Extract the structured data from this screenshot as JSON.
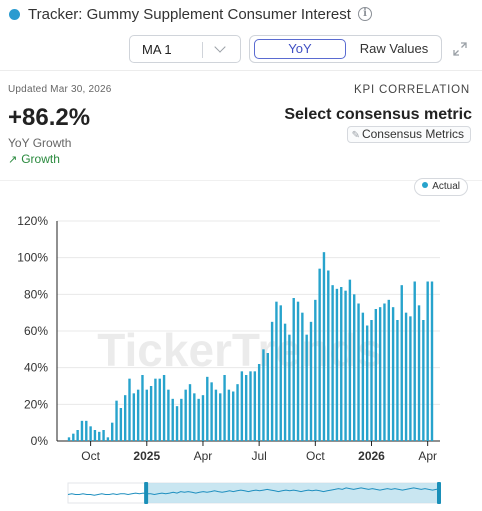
{
  "header": {
    "title": "Tracker: Gummy Supplement Consumer Interest",
    "info_icon": "info-icon"
  },
  "controls": {
    "ma_value": "MA 1",
    "toggle_yoy": "YoY",
    "toggle_raw": "Raw Values",
    "expand_icon": "expand-icon"
  },
  "summary": {
    "updated": "Updated Mar 30, 2026",
    "value": "+86.2%",
    "label": "YoY Growth",
    "trend_label": "Growth",
    "trend_color": "#2a8a3e"
  },
  "kpi": {
    "heading": "KPI CORRELATION",
    "select_label": "Select consensus metric",
    "button_label": "Consensus Metrics"
  },
  "legend": {
    "label": "Actual",
    "color": "#27a3cc"
  },
  "watermark": "TickerTrends",
  "chart_data": {
    "type": "bar",
    "title": "",
    "xlabel": "",
    "ylabel": "",
    "ylim": [
      0,
      120
    ],
    "y_ticks": [
      "0%",
      "20%",
      "40%",
      "60%",
      "80%",
      "100%",
      "120%"
    ],
    "x_ticks": [
      {
        "label": "Oct",
        "index": 5,
        "bold": false
      },
      {
        "label": "2025",
        "index": 18,
        "bold": true
      },
      {
        "label": "Apr",
        "index": 31,
        "bold": false
      },
      {
        "label": "Jul",
        "index": 44,
        "bold": false
      },
      {
        "label": "Oct",
        "index": 57,
        "bold": false
      },
      {
        "label": "2026",
        "index": 70,
        "bold": true
      },
      {
        "label": "Apr",
        "index": 83,
        "bold": false
      }
    ],
    "grid": true,
    "legend_position": "top-right",
    "series": [
      {
        "name": "Actual",
        "color": "#27a3cc",
        "values": [
          2,
          4,
          6,
          11,
          11,
          8,
          6,
          5,
          6,
          2,
          10,
          22,
          18,
          25,
          34,
          26,
          28,
          36,
          28,
          30,
          34,
          34,
          36,
          28,
          23,
          19,
          23,
          28,
          31,
          26,
          23,
          25,
          35,
          32,
          28,
          26,
          36,
          28,
          27,
          31,
          38,
          36,
          38,
          38,
          42,
          50,
          48,
          65,
          76,
          74,
          64,
          58,
          78,
          76,
          70,
          58,
          65,
          77,
          94,
          103,
          93,
          85,
          83,
          84,
          82,
          88,
          80,
          75,
          70,
          63,
          66,
          72,
          73,
          75,
          77,
          73,
          66,
          85,
          70,
          68,
          87,
          74,
          66,
          87,
          87
        ]
      }
    ]
  },
  "brush": {
    "series": [
      2,
      3,
      2,
      2,
      3,
      2,
      2,
      1,
      2,
      3,
      2,
      2,
      3,
      2,
      3,
      3,
      2,
      3,
      4,
      3,
      4,
      3,
      3,
      2,
      3,
      4,
      3,
      4,
      5,
      4,
      6,
      5,
      6,
      5,
      4,
      5,
      6,
      5,
      6,
      7,
      6,
      5,
      6,
      7,
      6,
      7,
      8,
      7,
      6,
      7,
      8,
      7,
      8,
      9,
      8,
      7,
      6,
      7,
      8,
      7,
      8,
      7,
      6,
      7,
      8,
      7,
      8,
      7,
      6,
      7,
      8,
      9,
      10,
      9,
      11,
      10,
      9,
      10,
      11,
      10,
      9,
      10,
      9,
      8,
      9,
      10,
      9,
      10,
      9,
      8,
      9,
      10,
      11,
      10,
      9,
      10,
      9,
      8,
      9,
      10
    ],
    "selection_start": 0.21,
    "selection_end": 1.0
  }
}
